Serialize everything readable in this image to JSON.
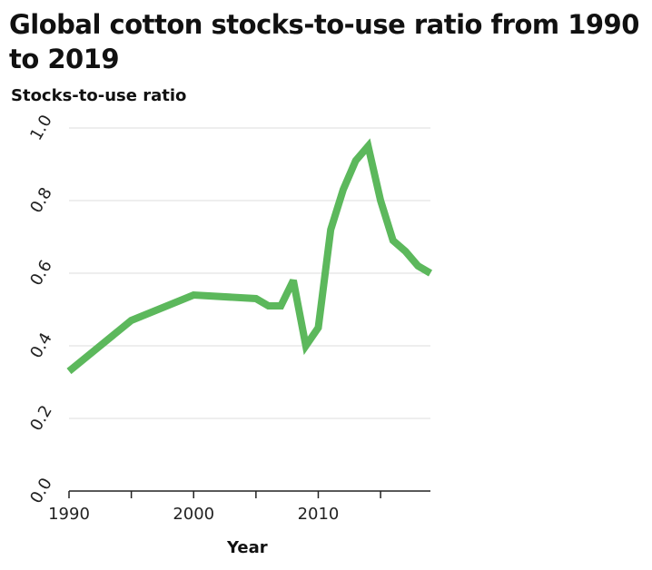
{
  "chart_data": {
    "type": "line",
    "title": "Global cotton stocks-to-use ratio from 1990 to 2019",
    "xlabel": "Year",
    "ylabel": "Stocks-to-use ratio",
    "xlim": [
      1990,
      2019
    ],
    "ylim": [
      0,
      1.0
    ],
    "x_ticks": [
      1990,
      1995,
      2000,
      2005,
      2010,
      2015
    ],
    "x_tick_labels": [
      "1990",
      "2000",
      "2010"
    ],
    "y_ticks": [
      0.0,
      0.2,
      0.4,
      0.6,
      0.8,
      1.0
    ],
    "y_tick_labels": [
      "0.0",
      "0.2",
      "0.4",
      "0.6",
      "0.8",
      "1.0"
    ],
    "grid": "horizontal",
    "line_color": "#5cb85c",
    "series": [
      {
        "x": [
          1990,
          1995,
          2000,
          2005,
          2006,
          2007,
          2008,
          2009,
          2010,
          2011,
          2012,
          2013,
          2014,
          2015,
          2016,
          2017,
          2018,
          2019
        ],
        "values": [
          0.33,
          0.47,
          0.54,
          0.53,
          0.51,
          0.51,
          0.58,
          0.4,
          0.45,
          0.72,
          0.83,
          0.91,
          0.95,
          0.8,
          0.69,
          0.66,
          0.62,
          0.6
        ]
      }
    ]
  }
}
